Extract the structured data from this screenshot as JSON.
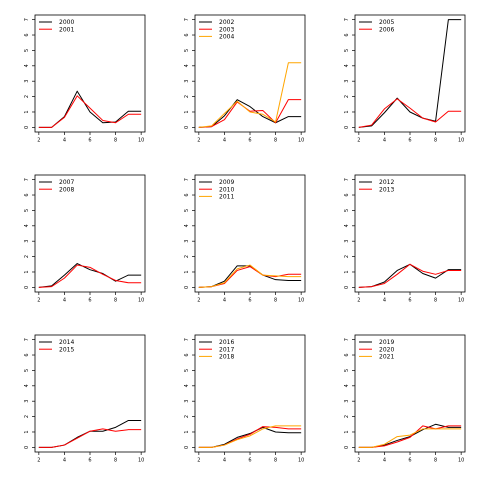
{
  "colors": {
    "series": [
      "#000000",
      "#ff0000",
      "#ffa500"
    ],
    "axis": "#000000"
  },
  "axes": {
    "xlim": [
      1.7,
      10.3
    ],
    "ylim": [
      -0.3,
      7.3
    ],
    "xticks": [
      "2",
      "4",
      "6",
      "8",
      "10"
    ],
    "yticks": [
      "0",
      "1",
      "2",
      "3",
      "4",
      "5",
      "6",
      "7"
    ],
    "legend_position": "top-left",
    "grid": false
  },
  "chart_data": [
    {
      "type": "line",
      "x": [
        2,
        3,
        4,
        5,
        6,
        7,
        8,
        9,
        10
      ],
      "series": [
        {
          "name": "2000",
          "values": [
            0,
            0,
            0.7,
            2.35,
            1.0,
            0.3,
            0.35,
            1.05,
            1.05
          ]
        },
        {
          "name": "2001",
          "values": [
            0,
            0,
            0.65,
            2.05,
            1.25,
            0.45,
            0.3,
            0.85,
            0.85
          ]
        }
      ]
    },
    {
      "type": "line",
      "x": [
        2,
        3,
        4,
        5,
        6,
        7,
        8,
        9,
        10
      ],
      "series": [
        {
          "name": "2002",
          "values": [
            0,
            0.05,
            0.75,
            1.8,
            1.35,
            0.7,
            0.3,
            0.7,
            0.7
          ]
        },
        {
          "name": "2003",
          "values": [
            0,
            0.05,
            0.5,
            1.65,
            1.05,
            1.1,
            0.3,
            1.8,
            1.8
          ]
        },
        {
          "name": "2004",
          "values": [
            0,
            0.1,
            0.9,
            1.7,
            1.0,
            0.85,
            0.35,
            4.2,
            4.2
          ]
        }
      ]
    },
    {
      "type": "line",
      "x": [
        2,
        3,
        4,
        5,
        6,
        7,
        8,
        9,
        10
      ],
      "series": [
        {
          "name": "2005",
          "values": [
            0,
            0.1,
            0.95,
            1.9,
            1.0,
            0.6,
            0.4,
            7.0,
            7.0
          ]
        },
        {
          "name": "2006",
          "values": [
            0,
            0.15,
            1.2,
            1.85,
            1.25,
            0.6,
            0.35,
            1.05,
            1.05
          ]
        }
      ]
    },
    {
      "type": "line",
      "x": [
        2,
        3,
        4,
        5,
        6,
        7,
        8,
        9,
        10
      ],
      "series": [
        {
          "name": "2007",
          "values": [
            0,
            0.1,
            0.8,
            1.55,
            1.15,
            0.9,
            0.4,
            0.8,
            0.8
          ]
        },
        {
          "name": "2008",
          "values": [
            0,
            0.05,
            0.6,
            1.45,
            1.3,
            0.85,
            0.45,
            0.3,
            0.3
          ]
        }
      ]
    },
    {
      "type": "line",
      "x": [
        2,
        3,
        4,
        5,
        6,
        7,
        8,
        9,
        10
      ],
      "series": [
        {
          "name": "2009",
          "values": [
            0,
            0.05,
            0.4,
            1.4,
            1.4,
            0.8,
            0.5,
            0.45,
            0.45
          ]
        },
        {
          "name": "2010",
          "values": [
            0,
            0.05,
            0.25,
            1.1,
            1.35,
            0.8,
            0.7,
            0.85,
            0.85
          ]
        },
        {
          "name": "2011",
          "values": [
            0,
            0.05,
            0.3,
            1.2,
            1.45,
            0.8,
            0.75,
            0.7,
            0.7
          ]
        }
      ]
    },
    {
      "type": "line",
      "x": [
        2,
        3,
        4,
        5,
        6,
        7,
        8,
        9,
        10
      ],
      "series": [
        {
          "name": "2012",
          "values": [
            0,
            0.05,
            0.35,
            1.1,
            1.5,
            0.9,
            0.6,
            1.15,
            1.15
          ]
        },
        {
          "name": "2013",
          "values": [
            0,
            0.05,
            0.25,
            0.85,
            1.5,
            1.05,
            0.85,
            1.1,
            1.1
          ]
        }
      ]
    },
    {
      "type": "line",
      "x": [
        2,
        3,
        4,
        5,
        6,
        7,
        8,
        9,
        10
      ],
      "series": [
        {
          "name": "2014",
          "values": [
            0,
            0,
            0.15,
            0.65,
            1.05,
            1.05,
            1.3,
            1.75,
            1.75
          ]
        },
        {
          "name": "2015",
          "values": [
            0,
            0,
            0.15,
            0.6,
            1.05,
            1.2,
            1.05,
            1.15,
            1.15
          ]
        }
      ]
    },
    {
      "type": "line",
      "x": [
        2,
        3,
        4,
        5,
        6,
        7,
        8,
        9,
        10
      ],
      "series": [
        {
          "name": "2016",
          "values": [
            0,
            0,
            0.2,
            0.65,
            0.9,
            1.3,
            1.0,
            0.95,
            0.95
          ]
        },
        {
          "name": "2017",
          "values": [
            0,
            0,
            0.15,
            0.55,
            0.85,
            1.35,
            1.3,
            1.2,
            1.2
          ]
        },
        {
          "name": "2018",
          "values": [
            0,
            0,
            0.15,
            0.5,
            0.75,
            1.2,
            1.4,
            1.4,
            1.4
          ]
        }
      ]
    },
    {
      "type": "line",
      "x": [
        2,
        3,
        4,
        5,
        6,
        7,
        8,
        9,
        10
      ],
      "series": [
        {
          "name": "2019",
          "values": [
            0,
            0,
            0.15,
            0.45,
            0.7,
            1.15,
            1.5,
            1.3,
            1.3
          ]
        },
        {
          "name": "2020",
          "values": [
            0,
            0,
            0.1,
            0.35,
            0.65,
            1.4,
            1.2,
            1.4,
            1.4
          ]
        },
        {
          "name": "2021",
          "values": [
            0,
            0,
            0.2,
            0.7,
            0.8,
            1.2,
            1.2,
            1.2,
            1.2
          ]
        }
      ]
    }
  ]
}
